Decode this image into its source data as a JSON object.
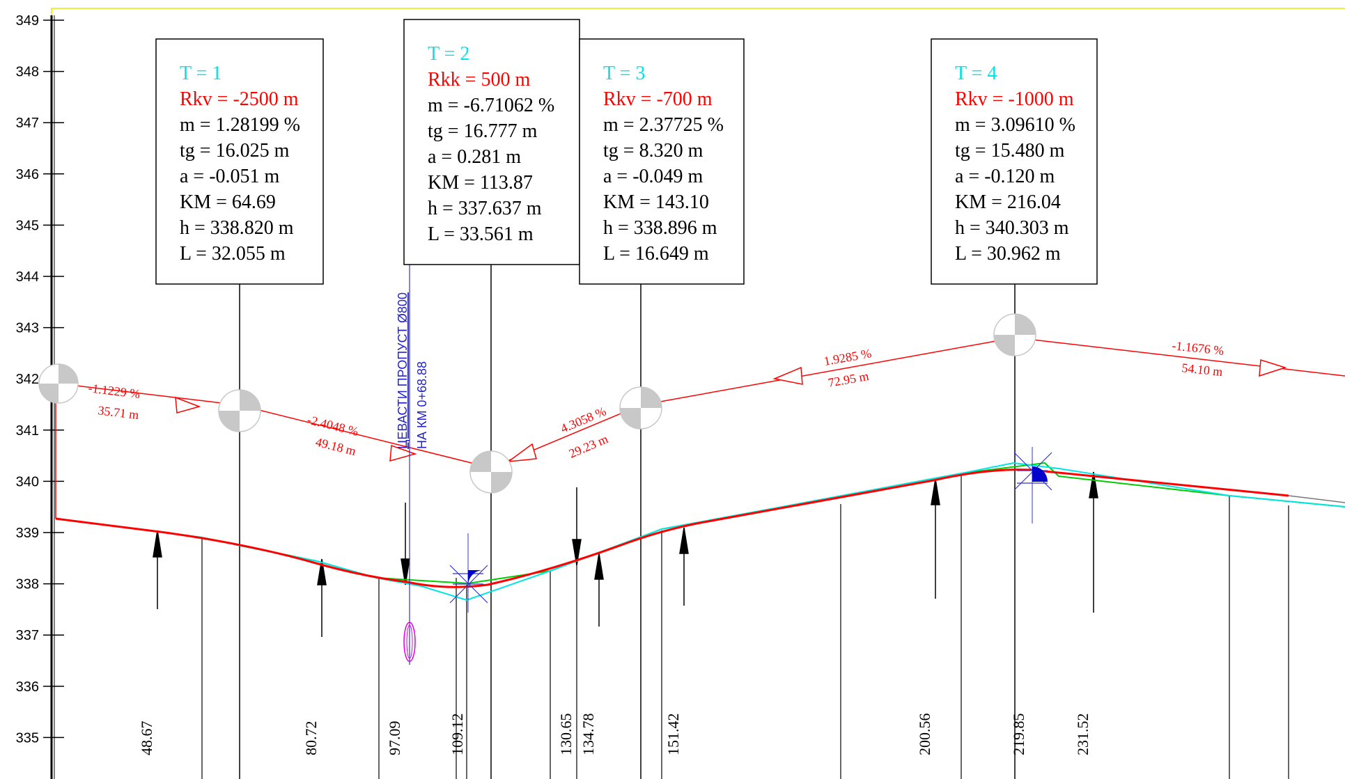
{
  "colors": {
    "background": "#ffffff",
    "frame": "#e8e800",
    "black": "#000000",
    "red": "#ff0000",
    "cyan": "#00e5e5",
    "green": "#00d000",
    "blue": "#0000cc",
    "magenta": "#e000e0",
    "grey": "#c8c8c8",
    "darkgrey": "#707070"
  },
  "axis": {
    "ticks": [
      "349",
      "348",
      "347",
      "346",
      "345",
      "344",
      "343",
      "342",
      "341",
      "340",
      "339",
      "338",
      "337",
      "336",
      "335"
    ],
    "top_value": 349,
    "bottom_value": 335
  },
  "curves": [
    {
      "t": "T = 1",
      "r": "Rkv = -2500 m",
      "m": "m = 1.28199 %",
      "tg": "tg = 16.025 m",
      "a": "a = -0.051 m",
      "km": "KM = 64.69",
      "h": "h = 338.820 m",
      "l": "L = 32.055 m"
    },
    {
      "t": "T = 2",
      "r": "Rkk = 500 m",
      "m": "m = -6.71062 %",
      "tg": "tg = 16.777 m",
      "a": "a = 0.281 m",
      "km": "KM = 113.87",
      "h": "h = 337.637 m",
      "l": "L = 33.561 m"
    },
    {
      "t": "T = 3",
      "r": "Rkv = -700 m",
      "m": "m = 2.37725 %",
      "tg": "tg = 8.320 m",
      "a": "a = -0.049 m",
      "km": "KM = 143.10",
      "h": "h = 338.896 m",
      "l": "L = 16.649 m"
    },
    {
      "t": "T = 4",
      "r": "Rkv = -1000 m",
      "m": "m = 3.09610 %",
      "tg": "tg = 15.480 m",
      "a": "a = -0.120 m",
      "km": "KM = 216.04",
      "h": "h = 340.303 m",
      "l": "L = 30.962 m"
    }
  ],
  "grades": [
    {
      "slope": "-1.1229 %",
      "length": "35.71 m"
    },
    {
      "slope": "-2.4048 %",
      "length": "49.18 m"
    },
    {
      "slope": "4.3058 %",
      "length": "29.23 m"
    },
    {
      "slope": "1.9285 %",
      "length": "72.95 m"
    },
    {
      "slope": "-1.1676 %",
      "length": "54.10 m"
    }
  ],
  "culvert": {
    "line1": "ЦЕВАСТИ ПРОПУСТ Ø800",
    "line2": "НА КМ  0+68.88"
  },
  "stations": [
    "48.67",
    "80.72",
    "97.09",
    "109.12",
    "130.65",
    "134.78",
    "151.42",
    "200.56",
    "219.85",
    "231.52"
  ]
}
